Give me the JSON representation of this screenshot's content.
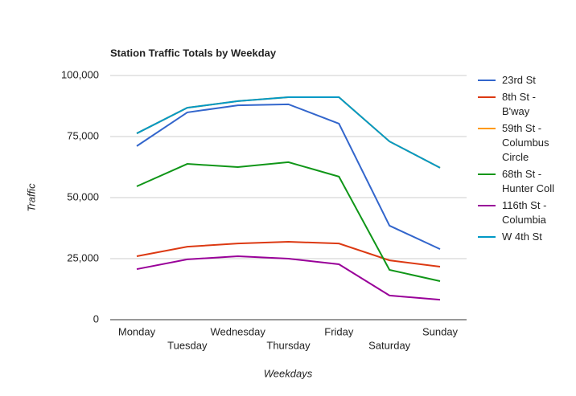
{
  "chart_data": {
    "type": "line",
    "title": "Station Traffic Totals by Weekday",
    "x_label": "Weekdays",
    "y_label": "Traffic",
    "categories": [
      "Monday",
      "Tuesday",
      "Wednesday",
      "Thursday",
      "Friday",
      "Saturday",
      "Sunday"
    ],
    "series": [
      {
        "name": "23rd St",
        "color": "#3366cc",
        "values": [
          71100,
          84900,
          87800,
          88200,
          80300,
          38500,
          28900
        ]
      },
      {
        "name": "8th St - B'way",
        "color": "#dc3912",
        "values": [
          26000,
          29900,
          31200,
          31900,
          31200,
          24300,
          21700
        ]
      },
      {
        "name": "59th St - Columbus Circle",
        "color": "#ff9900",
        "values": [
          76300,
          86800,
          89500,
          91100,
          91100,
          73000,
          62200
        ]
      },
      {
        "name": "68th St - Hunter Coll",
        "color": "#109618",
        "values": [
          54600,
          63800,
          62500,
          64500,
          58600,
          20400,
          15800
        ]
      },
      {
        "name": "116th St - Columbia",
        "color": "#990099",
        "values": [
          20700,
          24700,
          26000,
          25000,
          22700,
          9900,
          8200
        ]
      },
      {
        "name": "W 4th St",
        "color": "#0099c6",
        "values": [
          76300,
          86800,
          89500,
          91100,
          91100,
          73000,
          62200
        ]
      }
    ],
    "ylim": [
      0,
      100000
    ],
    "yticks": [
      0,
      {
        "value": 25000,
        "label": "25,000"
      },
      {
        "value": 50000,
        "label": "50,000"
      },
      {
        "value": 75000,
        "label": "75,000"
      },
      {
        "value": 100000,
        "label": "100,000"
      }
    ],
    "grid": true,
    "legend": "right"
  }
}
